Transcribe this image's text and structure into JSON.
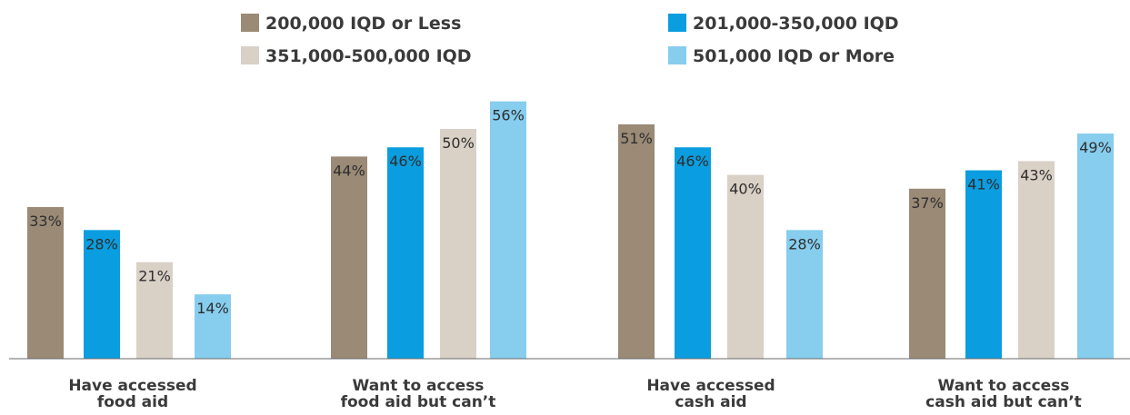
{
  "chart_data": {
    "type": "bar",
    "categories": [
      [
        "Have accessed",
        "food aid"
      ],
      [
        "Want to access",
        "food aid but can’t"
      ],
      [
        "Have accessed",
        "cash aid"
      ],
      [
        "Want to access",
        "cash aid but can’t"
      ]
    ],
    "series": [
      {
        "name": "200,000 IQD or Less",
        "color": "#9a8a76",
        "values": [
          33,
          44,
          51,
          37
        ],
        "labels": [
          "33%",
          "44%",
          "51%",
          "37%"
        ]
      },
      {
        "name": "201,000-350,000 IQD",
        "color": "#0a9ddf",
        "values": [
          28,
          46,
          46,
          41
        ],
        "labels": [
          "28%",
          "46%",
          "46%",
          "41%"
        ]
      },
      {
        "name": "351,000-500,000 IQD",
        "color": "#d9d0c6",
        "values": [
          21,
          50,
          40,
          43
        ],
        "labels": [
          "21%",
          "50%",
          "40%",
          "43%"
        ]
      },
      {
        "name": "501,000 IQD or More",
        "color": "#86cdee",
        "values": [
          14,
          56,
          28,
          49
        ],
        "labels": [
          "14%",
          "56%",
          "28%",
          "49%"
        ]
      }
    ],
    "ylim": [
      0,
      62
    ],
    "grid": false,
    "legend_position": "top-center"
  }
}
